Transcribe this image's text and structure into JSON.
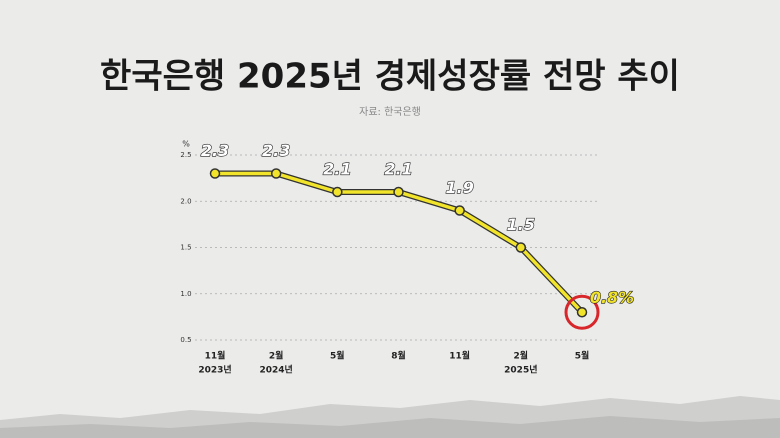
{
  "chart_data": {
    "type": "line",
    "title": "한국은행 2025년 경제성장률 전망 추이",
    "source": "자료: 한국은행",
    "y_unit": "%",
    "categories": [
      "11월",
      "2월",
      "5월",
      "8월",
      "11월",
      "2월",
      "5월"
    ],
    "category_sublabels": [
      "2023년",
      "2024년",
      null,
      null,
      null,
      "2025년",
      null
    ],
    "values": [
      2.3,
      2.3,
      2.1,
      2.1,
      1.9,
      1.5,
      0.8
    ],
    "value_labels": [
      "2.3",
      "2.3",
      "2.1",
      "2.1",
      "1.9",
      "1.5",
      "0.8%"
    ],
    "color": "#f2e42a",
    "ylim": [
      0.5,
      2.5
    ],
    "yticks": [
      0.5,
      {
        "value": 1.0,
        "label": "1.0"
      },
      1.5,
      {
        "value": 2.0,
        "label": "2.0"
      },
      2.5
    ],
    "grid": true,
    "highlight": {
      "index": 6,
      "color": "#d8262a"
    }
  }
}
